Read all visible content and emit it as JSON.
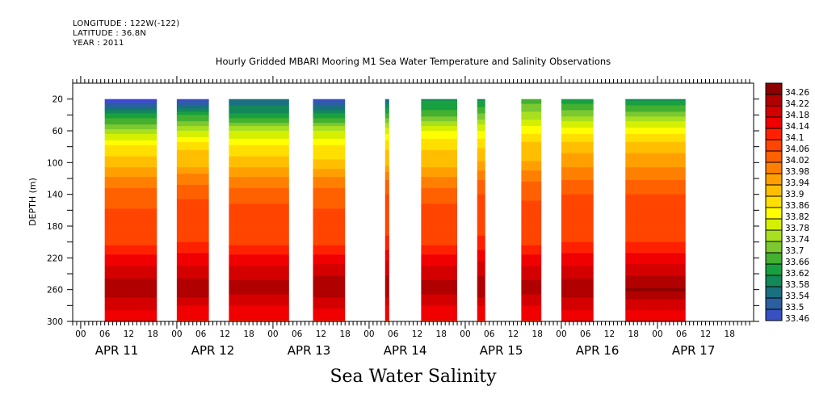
{
  "header": {
    "longitude": "LONGITUDE : 122W(-122)",
    "latitude": "LATITUDE : 36.8N",
    "year": "YEAR : 2011"
  },
  "chart_data": {
    "type": "heatmap",
    "title": "Hourly Gridded MBARI Mooring M1 Sea Water Temperature and Salinity Observations",
    "variable_label": "Sea Water Salinity",
    "ylabel": "DEPTH (m)",
    "xlabel": "",
    "y_range": [
      0,
      300
    ],
    "y_inverted": true,
    "y_ticks": [
      20,
      60,
      100,
      140,
      180,
      220,
      260,
      300
    ],
    "x_range_hours": [
      -2,
      168
    ],
    "x_origin": "APR 11 00:00 2011",
    "x_hour_tick_labels": [
      "00",
      "06",
      "12",
      "18",
      "00",
      "06",
      "12",
      "18",
      "00",
      "06",
      "12",
      "18",
      "00",
      "06",
      "12",
      "18",
      "00",
      "06",
      "12",
      "18",
      "00",
      "06",
      "12",
      "18",
      "00",
      "06",
      "12",
      "18"
    ],
    "x_day_labels": [
      "APR 11",
      "APR 12",
      "APR 13",
      "APR 14",
      "APR 15",
      "APR 16",
      "APR 17"
    ],
    "colorbar": {
      "levels": [
        34.26,
        34.22,
        34.18,
        34.14,
        34.1,
        34.06,
        34.02,
        33.98,
        33.94,
        33.9,
        33.86,
        33.82,
        33.78,
        33.74,
        33.7,
        33.66,
        33.62,
        33.58,
        33.54,
        33.5,
        33.46
      ],
      "colors": [
        "#8b0000",
        "#b00000",
        "#d40000",
        "#f00000",
        "#ff2000",
        "#ff4500",
        "#ff6000",
        "#ff8000",
        "#ffa000",
        "#ffbf00",
        "#ffdf00",
        "#ffff00",
        "#d4f000",
        "#a8e020",
        "#7cc830",
        "#44b030",
        "#18a040",
        "#138858",
        "#1a7080",
        "#2a60a0",
        "#3850c0",
        "#4040e0",
        "#6030f0",
        "#8020f0",
        "#b010f0"
      ],
      "label_values": [
        "34.26",
        "34.22",
        "34.18",
        "34.14",
        "34.1",
        "34.06",
        "34.02",
        "33.98",
        "33.94",
        "33.9",
        "33.86",
        "33.82",
        "33.78",
        "33.74",
        "33.7",
        "33.66",
        "33.62",
        "33.58",
        "33.54",
        "33.5",
        "33.46"
      ]
    },
    "profile_depths": [
      20,
      40,
      60,
      80,
      100,
      120,
      140,
      160,
      180,
      200,
      220,
      240,
      260,
      280,
      300
    ],
    "segments": [
      {
        "start_hour": 6,
        "end_hour": 19,
        "surface": 33.58,
        "profile": [
          33.58,
          33.74,
          33.84,
          33.94,
          33.98,
          34.04,
          34.08,
          34.1,
          34.12,
          34.12,
          34.18,
          34.22,
          34.26,
          34.21,
          34.17
        ]
      },
      {
        "start_hour": 24,
        "end_hour": 32,
        "surface": 33.6,
        "profile": [
          33.6,
          33.76,
          33.86,
          33.96,
          33.98,
          34.05,
          34.09,
          34.12,
          34.12,
          34.13,
          34.18,
          34.22,
          34.26,
          34.2,
          34.16
        ]
      },
      {
        "start_hour": 37,
        "end_hour": 52,
        "surface": 33.66,
        "profile": [
          33.66,
          33.74,
          33.86,
          33.94,
          33.98,
          34.04,
          34.08,
          34.11,
          34.11,
          34.12,
          34.18,
          34.22,
          34.25,
          34.2,
          34.16
        ]
      },
      {
        "start_hour": 58,
        "end_hour": 66,
        "surface": 33.6,
        "profile": [
          33.6,
          33.74,
          33.86,
          33.94,
          33.97,
          34.04,
          34.08,
          34.1,
          34.11,
          34.12,
          34.18,
          34.23,
          34.26,
          34.21,
          34.16
        ]
      },
      {
        "start_hour": 76,
        "end_hour": 77,
        "surface": 33.66,
        "profile": [
          33.66,
          33.78,
          33.88,
          33.96,
          33.98,
          34.06,
          34.1,
          34.12,
          34.12,
          34.14,
          34.19,
          34.23,
          34.26,
          34.2,
          34.16
        ]
      },
      {
        "start_hour": 85,
        "end_hour": 94,
        "surface": 33.72,
        "profile": [
          33.72,
          33.78,
          33.9,
          33.96,
          33.98,
          34.04,
          34.08,
          34.11,
          34.1,
          34.12,
          34.18,
          34.22,
          34.25,
          34.2,
          34.16
        ]
      },
      {
        "start_hour": 99,
        "end_hour": 101,
        "surface": 33.72,
        "profile": [
          33.72,
          33.8,
          33.9,
          33.96,
          34.0,
          34.06,
          34.1,
          34.12,
          34.12,
          34.14,
          34.19,
          34.23,
          34.26,
          34.2,
          34.16
        ]
      },
      {
        "start_hour": 110,
        "end_hour": 115,
        "surface": 33.78,
        "profile": [
          33.78,
          33.84,
          33.92,
          33.98,
          34.0,
          34.06,
          34.09,
          34.11,
          34.11,
          34.12,
          34.18,
          34.22,
          34.25,
          34.2,
          34.16
        ]
      },
      {
        "start_hour": 120,
        "end_hour": 128,
        "surface": 33.74,
        "profile": [
          33.74,
          33.82,
          33.92,
          33.98,
          34.02,
          34.06,
          34.1,
          34.12,
          34.12,
          34.13,
          34.18,
          34.22,
          34.26,
          34.21,
          34.17
        ]
      },
      {
        "start_hour": 136,
        "end_hour": 151,
        "surface": 33.72,
        "profile": [
          33.72,
          33.82,
          33.92,
          33.98,
          34.02,
          34.06,
          34.1,
          34.12,
          34.12,
          34.13,
          34.18,
          34.23,
          34.27,
          34.21,
          34.17
        ]
      }
    ]
  }
}
